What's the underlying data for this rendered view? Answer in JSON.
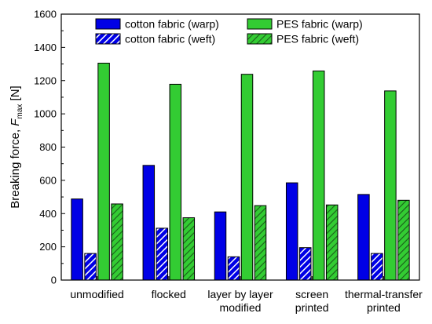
{
  "chart_data": {
    "type": "bar",
    "title": "",
    "ylabel": {
      "main": "Breaking force, ",
      "symbol": "F",
      "subscript": "max",
      "unit": " [N]"
    },
    "xlabel": "",
    "ylim": [
      0,
      1600
    ],
    "yticks": [
      0,
      200,
      400,
      600,
      800,
      1000,
      1200,
      1400,
      1600
    ],
    "categories": [
      [
        "unmodified"
      ],
      [
        "flocked"
      ],
      [
        "layer by layer",
        "modified"
      ],
      [
        "screen",
        "printed"
      ],
      [
        "thermal-transfer",
        "printed"
      ]
    ],
    "series": [
      {
        "name": "cotton fabric (warp)",
        "color": "#0000e6",
        "pattern": "solid",
        "values": [
          488,
          690,
          410,
          585,
          515
        ]
      },
      {
        "name": "cotton fabric (weft)",
        "color": "#0000e6",
        "pattern": "hatched",
        "values": [
          160,
          312,
          140,
          195,
          160
        ]
      },
      {
        "name": "PES fabric (warp)",
        "color": "#33cc33",
        "pattern": "solid",
        "values": [
          1305,
          1178,
          1238,
          1258,
          1138
        ]
      },
      {
        "name": "PES fabric (weft)",
        "color": "#33cc33",
        "pattern": "hatched",
        "values": [
          458,
          375,
          448,
          452,
          480
        ]
      }
    ],
    "legend_position": "top"
  }
}
